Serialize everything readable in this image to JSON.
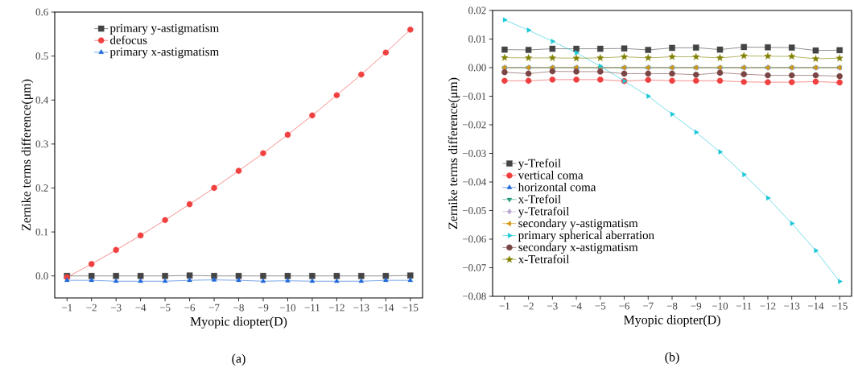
{
  "chart_data": [
    {
      "type": "line",
      "xlabel": "Myopic diopter(D)",
      "ylabel": "Zernike terms difference(μm)",
      "annotations": [
        "(a)"
      ],
      "categories": [
        "−1",
        "−2",
        "−3",
        "−4",
        "−5",
        "−6",
        "−7",
        "−8",
        "−9",
        "−10",
        "−11",
        "−12",
        "−13",
        "−14",
        "−15"
      ],
      "ylim": [
        -0.05,
        0.6
      ],
      "yticks": [
        {
          "value": 0,
          "label": "0.0"
        },
        0.1,
        0.2,
        0.3,
        0.4,
        0.5,
        0.6
      ],
      "grid": false,
      "legend": "top left",
      "line_style": "solid",
      "series": [
        {
          "name": "primary y-astigmatism",
          "color": "#444444",
          "marker": "square",
          "values": [
            0.0,
            0.0,
            0.0,
            0.0,
            0.0,
            0.001,
            0.0,
            0.0,
            0.0,
            0.0,
            0.0,
            0.0,
            0.0,
            0.0,
            0.001
          ]
        },
        {
          "name": "defocus",
          "color": "#f04040",
          "marker": "circle",
          "values": [
            -0.003,
            0.027,
            0.059,
            0.092,
            0.127,
            0.163,
            0.2,
            0.239,
            0.279,
            0.321,
            0.365,
            0.411,
            0.458,
            0.508,
            0.56
          ]
        },
        {
          "name": "primary x-astigmatism",
          "color": "#1f68d8",
          "marker": "triangle",
          "values": [
            -0.01,
            -0.01,
            -0.012,
            -0.012,
            -0.012,
            -0.01,
            -0.009,
            -0.01,
            -0.012,
            -0.011,
            -0.012,
            -0.012,
            -0.012,
            -0.01,
            -0.01
          ]
        }
      ]
    },
    {
      "type": "line",
      "xlabel": "Myopic diopter(D)",
      "ylabel": "Zernike terms difference(μm)",
      "annotations": [
        "(b)"
      ],
      "categories": [
        "−1",
        "−2",
        "−3",
        "−4",
        "−5",
        "−6",
        "−7",
        "−8",
        "−9",
        "−10",
        "−11",
        "−12",
        "−13",
        "−14",
        "−15"
      ],
      "ylim": [
        -0.08,
        0.02
      ],
      "yticks": [
        {
          "value": -0.08,
          "label": "−0.08"
        },
        {
          "value": -0.07,
          "label": "−0.07"
        },
        {
          "value": -0.06,
          "label": "−0.06"
        },
        {
          "value": -0.05,
          "label": "−0.05"
        },
        {
          "value": -0.04,
          "label": "−0.04"
        },
        {
          "value": -0.03,
          "label": "−0.03"
        },
        {
          "value": -0.02,
          "label": "−0.02"
        },
        {
          "value": -0.01,
          "label": "−0.01"
        },
        {
          "value": 0,
          "label": "0.00"
        },
        0.01,
        0.02
      ],
      "grid": false,
      "legend": "bottom left",
      "line_style": "solid",
      "series": [
        {
          "name": "y-Trefoil",
          "color": "#444444",
          "marker": "square",
          "values": [
            0.0063,
            0.0062,
            0.0066,
            0.0066,
            0.0066,
            0.0067,
            0.0062,
            0.0069,
            0.007,
            0.0063,
            0.0072,
            0.0071,
            0.007,
            0.006,
            0.0061
          ]
        },
        {
          "name": "vertical coma",
          "color": "#f04040",
          "marker": "circle",
          "values": [
            -0.0046,
            -0.0046,
            -0.0042,
            -0.0042,
            -0.0042,
            -0.0047,
            -0.0043,
            -0.0046,
            -0.0046,
            -0.0046,
            -0.005,
            -0.0051,
            -0.0051,
            -0.0049,
            -0.0052
          ]
        },
        {
          "name": "horizontal coma",
          "color": "#1f68d8",
          "marker": "triangle",
          "values": [
            0,
            0,
            0,
            0,
            0,
            0,
            0,
            0,
            0,
            0,
            0,
            0,
            0,
            0,
            0
          ]
        },
        {
          "name": "x-Trefoil",
          "color": "#2a9d80",
          "marker": "triangle-down",
          "values": [
            0,
            0,
            0,
            0,
            0,
            0,
            0,
            0,
            0,
            0,
            0,
            0,
            0,
            0,
            0
          ]
        },
        {
          "name": "y-Tetrafoil",
          "color": "#b8a8d0",
          "marker": "diamond",
          "values": [
            0,
            0,
            0,
            0,
            0,
            0,
            0,
            0,
            0,
            0,
            0,
            0,
            0,
            0,
            0
          ]
        },
        {
          "name": "secondary y-astigmatism",
          "color": "#d4960a",
          "marker": "triangle-left",
          "values": [
            0,
            0,
            0,
            0,
            0,
            0,
            0,
            0,
            0,
            0,
            0,
            0,
            0,
            0,
            0
          ]
        },
        {
          "name": "primary spherical aberration",
          "color": "#1ec8d8",
          "marker": "triangle-right",
          "values": [
            0.0167,
            0.0131,
            0.0092,
            0.0052,
            0.0005,
            -0.0047,
            -0.01,
            -0.0163,
            -0.0226,
            -0.0295,
            -0.0374,
            -0.0456,
            -0.0545,
            -0.064,
            -0.0748
          ]
        },
        {
          "name": "secondary x-astigmatism",
          "color": "#7a4545",
          "marker": "circle",
          "values": [
            -0.0016,
            -0.0021,
            -0.0013,
            -0.0014,
            -0.0014,
            -0.0021,
            -0.0021,
            -0.0021,
            -0.0025,
            -0.0018,
            -0.0023,
            -0.0027,
            -0.0027,
            -0.0027,
            -0.003
          ]
        },
        {
          "name": "x-Tetrafoil",
          "color": "#808000",
          "marker": "star",
          "values": [
            0.0035,
            0.0034,
            0.0034,
            0.0033,
            0.0034,
            0.0038,
            0.0034,
            0.0038,
            0.0038,
            0.0034,
            0.0041,
            0.004,
            0.0039,
            0.0031,
            0.0033
          ]
        }
      ]
    }
  ]
}
